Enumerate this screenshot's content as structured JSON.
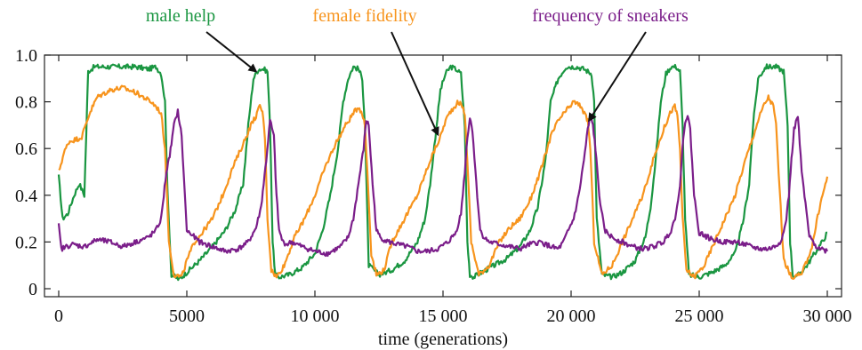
{
  "chart_data": {
    "type": "line",
    "xlabel": "time (generations)",
    "ylabel": "",
    "xlim": [
      0,
      30000
    ],
    "ylim": [
      0,
      1.0
    ],
    "grid": false,
    "xticks": [
      0,
      5000,
      10000,
      15000,
      20000,
      25000,
      30000
    ],
    "xtick_labels": [
      "0",
      "5000",
      "10 000",
      "15 000",
      "20 000",
      "25 000",
      "30 000"
    ],
    "yticks": [
      0,
      0.2,
      0.4,
      0.6,
      0.8,
      1.0
    ],
    "ytick_labels": [
      "0",
      "0.2",
      "0.4",
      "0.6",
      "0.8",
      "1.0"
    ],
    "series": [
      {
        "name": "male help",
        "color": "#1a9641",
        "x": [
          0,
          150,
          350,
          600,
          800,
          1000,
          1150,
          1400,
          2000,
          2500,
          3000,
          3500,
          3800,
          4000,
          4150,
          4250,
          4400,
          4700,
          5000,
          5500,
          6000,
          6500,
          6900,
          7200,
          7400,
          7600,
          7800,
          8000,
          8150,
          8250,
          8350,
          8450,
          8600,
          9000,
          9500,
          10000,
          10300,
          10600,
          10900,
          11100,
          11300,
          11500,
          11700,
          11850,
          11950,
          12100,
          12500,
          13000,
          13500,
          14000,
          14300,
          14500,
          14700,
          14900,
          15100,
          15300,
          15500,
          15700,
          15850,
          15950,
          16050,
          16200,
          16500,
          17000,
          17500,
          18000,
          18400,
          18700,
          19000,
          19200,
          19500,
          19800,
          20200,
          20500,
          20800,
          20900,
          21000,
          21200,
          21600,
          22000,
          22500,
          22900,
          23100,
          23300,
          23500,
          23700,
          23900,
          24100,
          24250,
          24350,
          24450,
          24600,
          25000,
          25500,
          26000,
          26400,
          26700,
          26950,
          27100,
          27300,
          27600,
          28000,
          28300,
          28450,
          28550,
          28650,
          28800,
          29200,
          29500,
          29800,
          30000
        ],
        "values": [
          0.48,
          0.3,
          0.32,
          0.4,
          0.45,
          0.4,
          0.93,
          0.95,
          0.95,
          0.95,
          0.95,
          0.94,
          0.95,
          0.92,
          0.8,
          0.4,
          0.06,
          0.04,
          0.07,
          0.12,
          0.18,
          0.25,
          0.34,
          0.45,
          0.7,
          0.9,
          0.94,
          0.94,
          0.93,
          0.7,
          0.2,
          0.06,
          0.05,
          0.06,
          0.09,
          0.15,
          0.25,
          0.4,
          0.6,
          0.8,
          0.9,
          0.95,
          0.94,
          0.9,
          0.7,
          0.1,
          0.06,
          0.08,
          0.12,
          0.2,
          0.3,
          0.45,
          0.65,
          0.85,
          0.92,
          0.95,
          0.94,
          0.92,
          0.7,
          0.2,
          0.06,
          0.05,
          0.07,
          0.1,
          0.13,
          0.18,
          0.25,
          0.35,
          0.55,
          0.8,
          0.9,
          0.95,
          0.95,
          0.94,
          0.92,
          0.8,
          0.3,
          0.06,
          0.05,
          0.07,
          0.12,
          0.22,
          0.35,
          0.55,
          0.8,
          0.92,
          0.95,
          0.95,
          0.93,
          0.7,
          0.3,
          0.06,
          0.05,
          0.07,
          0.1,
          0.15,
          0.28,
          0.45,
          0.7,
          0.9,
          0.95,
          0.95,
          0.93,
          0.7,
          0.2,
          0.06,
          0.05,
          0.1,
          0.15,
          0.2,
          0.24
        ]
      },
      {
        "name": "female fidelity",
        "color": "#f7941d",
        "x": [
          0,
          200,
          400,
          700,
          900,
          1200,
          1500,
          2000,
          2500,
          3000,
          3300,
          3600,
          3800,
          4000,
          4150,
          4300,
          4500,
          4800,
          5000,
          5300,
          5600,
          6000,
          6400,
          6800,
          7200,
          7500,
          7700,
          7850,
          7950,
          8050,
          8150,
          8300,
          8500,
          8800,
          9200,
          9600,
          10000,
          10400,
          10800,
          11200,
          11500,
          11700,
          11850,
          11950,
          12050,
          12200,
          12400,
          12700,
          13000,
          13500,
          14000,
          14500,
          14900,
          15100,
          15300,
          15450,
          15600,
          15750,
          15850,
          15950,
          16100,
          16400,
          16800,
          17200,
          17600,
          18000,
          18400,
          18800,
          19200,
          19500,
          19800,
          20100,
          20400,
          20550,
          20650,
          20750,
          20900,
          21200,
          21600,
          22000,
          22400,
          22800,
          23200,
          23600,
          23900,
          24050,
          24150,
          24250,
          24350,
          24500,
          24800,
          25200,
          25600,
          26000,
          26400,
          26800,
          27100,
          27300,
          27500,
          27700,
          27800,
          27900,
          28000,
          28100,
          28300,
          28600,
          29000,
          29400,
          29700,
          30000
        ],
        "values": [
          0.5,
          0.58,
          0.63,
          0.64,
          0.65,
          0.75,
          0.82,
          0.85,
          0.86,
          0.84,
          0.82,
          0.8,
          0.78,
          0.75,
          0.6,
          0.2,
          0.06,
          0.05,
          0.12,
          0.2,
          0.24,
          0.3,
          0.4,
          0.52,
          0.62,
          0.7,
          0.74,
          0.78,
          0.76,
          0.65,
          0.3,
          0.08,
          0.05,
          0.1,
          0.22,
          0.3,
          0.4,
          0.52,
          0.62,
          0.7,
          0.75,
          0.78,
          0.75,
          0.7,
          0.5,
          0.15,
          0.06,
          0.08,
          0.2,
          0.3,
          0.4,
          0.55,
          0.65,
          0.72,
          0.76,
          0.78,
          0.8,
          0.78,
          0.75,
          0.55,
          0.2,
          0.06,
          0.1,
          0.2,
          0.26,
          0.3,
          0.38,
          0.5,
          0.65,
          0.72,
          0.76,
          0.8,
          0.78,
          0.74,
          0.72,
          0.6,
          0.2,
          0.06,
          0.1,
          0.2,
          0.3,
          0.4,
          0.55,
          0.68,
          0.76,
          0.78,
          0.74,
          0.6,
          0.3,
          0.08,
          0.05,
          0.1,
          0.2,
          0.3,
          0.4,
          0.55,
          0.65,
          0.72,
          0.78,
          0.82,
          0.8,
          0.78,
          0.7,
          0.5,
          0.12,
          0.05,
          0.06,
          0.18,
          0.35,
          0.48
        ]
      },
      {
        "name": "frequency of sneakers",
        "color": "#7b1e8a",
        "x": [
          0,
          100,
          500,
          1000,
          1500,
          2000,
          2500,
          3000,
          3500,
          3800,
          4000,
          4100,
          4200,
          4300,
          4400,
          4500,
          4650,
          4800,
          5000,
          5500,
          6000,
          6500,
          7000,
          7400,
          7700,
          7900,
          8000,
          8100,
          8250,
          8400,
          8500,
          8600,
          8750,
          8900,
          9100,
          9500,
          10000,
          10500,
          11000,
          11300,
          11500,
          11700,
          11900,
          12000,
          12100,
          12250,
          12400,
          12550,
          12700,
          12900,
          13200,
          13600,
          14000,
          14400,
          14800,
          15200,
          15500,
          15700,
          15850,
          15950,
          16050,
          16150,
          16300,
          16450,
          16600,
          16800,
          17200,
          17600,
          18000,
          18400,
          18800,
          19200,
          19500,
          19700,
          19900,
          20100,
          20300,
          20500,
          20650,
          20750,
          20850,
          20950,
          21100,
          21300,
          21600,
          22000,
          22400,
          22800,
          23200,
          23600,
          23900,
          24100,
          24250,
          24350,
          24450,
          24550,
          24650,
          24800,
          25000,
          25500,
          26000,
          26500,
          27000,
          27400,
          27700,
          27950,
          28150,
          28300,
          28400,
          28500,
          28600,
          28700,
          28850,
          29000,
          29300,
          29600,
          30000
        ],
        "values": [
          0.27,
          0.17,
          0.19,
          0.18,
          0.21,
          0.2,
          0.18,
          0.2,
          0.22,
          0.25,
          0.3,
          0.4,
          0.5,
          0.55,
          0.62,
          0.7,
          0.76,
          0.65,
          0.25,
          0.2,
          0.18,
          0.16,
          0.17,
          0.2,
          0.26,
          0.35,
          0.45,
          0.55,
          0.72,
          0.65,
          0.4,
          0.25,
          0.2,
          0.19,
          0.2,
          0.18,
          0.16,
          0.15,
          0.18,
          0.22,
          0.3,
          0.45,
          0.6,
          0.72,
          0.7,
          0.45,
          0.25,
          0.22,
          0.21,
          0.2,
          0.19,
          0.18,
          0.16,
          0.16,
          0.17,
          0.2,
          0.24,
          0.32,
          0.5,
          0.65,
          0.73,
          0.68,
          0.45,
          0.25,
          0.22,
          0.2,
          0.19,
          0.18,
          0.17,
          0.19,
          0.2,
          0.18,
          0.17,
          0.2,
          0.25,
          0.3,
          0.4,
          0.55,
          0.68,
          0.74,
          0.7,
          0.6,
          0.4,
          0.25,
          0.22,
          0.2,
          0.18,
          0.17,
          0.18,
          0.2,
          0.25,
          0.32,
          0.45,
          0.6,
          0.72,
          0.74,
          0.68,
          0.4,
          0.24,
          0.21,
          0.2,
          0.2,
          0.18,
          0.17,
          0.17,
          0.18,
          0.2,
          0.24,
          0.3,
          0.4,
          0.55,
          0.68,
          0.74,
          0.5,
          0.22,
          0.18,
          0.16
        ]
      }
    ],
    "annotations": [
      {
        "text": "male help",
        "color": "#1a9641",
        "target": [
          7700,
          0.93
        ]
      },
      {
        "text": "female fidelity",
        "color": "#f7941d",
        "target": [
          14800,
          0.66
        ]
      },
      {
        "text": "frequency of sneakers",
        "color": "#7b1e8a",
        "target": [
          20700,
          0.72
        ]
      }
    ]
  }
}
